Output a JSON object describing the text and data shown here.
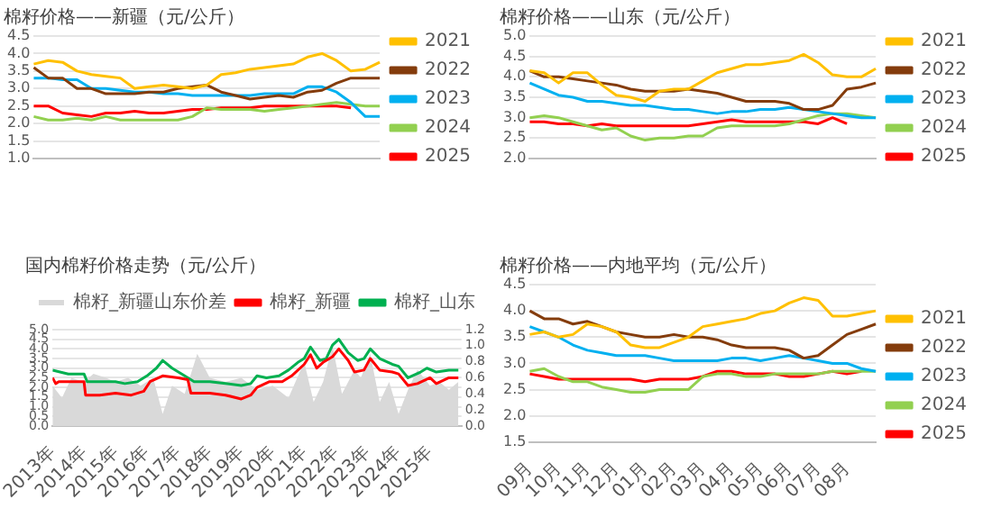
{
  "chart_data": [
    {
      "type": "line",
      "title": "棉籽价格——新疆（元/公斤）",
      "categories": [
        null,
        null,
        null,
        null,
        null,
        null,
        null,
        null,
        null,
        null,
        null,
        null,
        null,
        null,
        null,
        null,
        null,
        null,
        null,
        null,
        null,
        null,
        null,
        null,
        null
      ],
      "ylim": [
        1,
        4.5
      ],
      "yticks": [
        {
          "value": 1,
          "label": "1.0"
        },
        {
          "value": 1.5,
          "label": "1.5"
        },
        {
          "value": 2,
          "label": "2.0"
        },
        {
          "value": 2.5,
          "label": "2.5"
        },
        {
          "value": 3,
          "label": "3.0"
        },
        {
          "value": 3.5,
          "label": "3.5"
        },
        {
          "value": 4,
          "label": "4.0"
        },
        {
          "value": 4.5,
          "label": "4.5"
        }
      ],
      "grid": "y",
      "legend": "right",
      "series": [
        {
          "name": "2021",
          "color": "#ffc000",
          "values": [
            3.7,
            3.8,
            3.75,
            3.5,
            3.4,
            3.35,
            3.3,
            3.0,
            3.05,
            3.1,
            3.05,
            3.0,
            3.1,
            3.4,
            3.45,
            3.55,
            3.6,
            3.65,
            3.7,
            3.9,
            4.0,
            3.8,
            3.5,
            3.55,
            3.75
          ]
        },
        {
          "name": "2022",
          "color": "#843c0c",
          "values": [
            3.6,
            3.3,
            3.3,
            3.0,
            3.0,
            2.85,
            2.85,
            2.85,
            2.9,
            2.9,
            3.0,
            3.05,
            3.1,
            2.9,
            2.8,
            2.7,
            2.75,
            2.8,
            2.75,
            2.9,
            2.95,
            3.15,
            3.3,
            3.3,
            3.3
          ]
        },
        {
          "name": "2023",
          "color": "#00b0f0",
          "values": [
            3.3,
            3.3,
            3.25,
            3.25,
            3.0,
            3.0,
            2.95,
            2.9,
            2.9,
            2.85,
            2.85,
            2.8,
            2.8,
            2.8,
            2.8,
            2.8,
            2.85,
            2.85,
            2.85,
            3.05,
            3.05,
            2.9,
            2.6,
            2.2,
            2.2
          ]
        },
        {
          "name": "2024",
          "color": "#92d050",
          "values": [
            2.2,
            2.1,
            2.1,
            2.15,
            2.1,
            2.2,
            2.1,
            2.1,
            2.1,
            2.1,
            2.1,
            2.2,
            2.45,
            2.4,
            2.4,
            2.4,
            2.35,
            2.4,
            2.45,
            2.5,
            2.55,
            2.6,
            2.55,
            2.5,
            2.5
          ]
        },
        {
          "name": "2025",
          "color": "#ff0000",
          "values": [
            2.5,
            2.5,
            2.3,
            2.25,
            2.2,
            2.3,
            2.3,
            2.35,
            2.3,
            2.3,
            2.35,
            2.4,
            2.4,
            2.45,
            2.45,
            2.45,
            2.5,
            2.5,
            2.5,
            2.5,
            2.5,
            2.5,
            2.45,
            null,
            null
          ]
        }
      ]
    },
    {
      "type": "line",
      "title": "棉籽价格——山东（元/公斤）",
      "categories": [
        null,
        null,
        null,
        null,
        null,
        null,
        null,
        null,
        null,
        null,
        null,
        null,
        null,
        null,
        null,
        null,
        null,
        null,
        null,
        null,
        null,
        null,
        null,
        null,
        null
      ],
      "ylim": [
        2,
        5
      ],
      "yticks": [
        {
          "value": 2,
          "label": "2.0"
        },
        {
          "value": 2.5,
          "label": "2.5"
        },
        {
          "value": 3,
          "label": "3.0"
        },
        {
          "value": 3.5,
          "label": "3.5"
        },
        {
          "value": 4,
          "label": "4.0"
        },
        {
          "value": 4.5,
          "label": "4.5"
        },
        {
          "value": 5,
          "label": "5.0"
        }
      ],
      "grid": "y",
      "legend": "right",
      "series": [
        {
          "name": "2021",
          "color": "#ffc000",
          "values": [
            4.15,
            4.1,
            3.85,
            4.1,
            4.1,
            3.8,
            3.55,
            3.5,
            3.4,
            3.65,
            3.7,
            3.7,
            3.9,
            4.1,
            4.2,
            4.3,
            4.3,
            4.35,
            4.4,
            4.55,
            4.35,
            4.05,
            4.0,
            4.0,
            4.2
          ]
        },
        {
          "name": "2022",
          "color": "#843c0c",
          "values": [
            4.15,
            4.0,
            4.0,
            3.95,
            3.9,
            3.85,
            3.8,
            3.7,
            3.65,
            3.65,
            3.65,
            3.7,
            3.65,
            3.6,
            3.5,
            3.4,
            3.4,
            3.4,
            3.35,
            3.2,
            3.2,
            3.3,
            3.7,
            3.75,
            3.85
          ]
        },
        {
          "name": "2023",
          "color": "#00b0f0",
          "values": [
            3.85,
            3.7,
            3.55,
            3.5,
            3.4,
            3.4,
            3.35,
            3.3,
            3.3,
            3.25,
            3.2,
            3.2,
            3.15,
            3.1,
            3.15,
            3.15,
            3.2,
            3.2,
            3.25,
            3.2,
            3.15,
            3.1,
            3.05,
            3.0,
            3.0
          ]
        },
        {
          "name": "2024",
          "color": "#92d050",
          "values": [
            3.0,
            3.05,
            3.0,
            2.9,
            2.8,
            2.7,
            2.75,
            2.55,
            2.45,
            2.5,
            2.5,
            2.55,
            2.55,
            2.75,
            2.8,
            2.8,
            2.8,
            2.8,
            2.85,
            2.95,
            3.05,
            3.1,
            3.1,
            3.05,
            3.0
          ]
        },
        {
          "name": "2025",
          "color": "#ff0000",
          "values": [
            2.9,
            2.9,
            2.85,
            2.85,
            2.8,
            2.85,
            2.8,
            2.8,
            2.8,
            2.8,
            2.8,
            2.8,
            2.85,
            2.9,
            2.95,
            2.9,
            2.9,
            2.9,
            2.9,
            2.9,
            2.85,
            3.0,
            2.85,
            null,
            null
          ]
        }
      ]
    },
    {
      "type": "line",
      "title": "国内棉籽价格走势（元/公斤）",
      "xlim": [
        2013,
        2026
      ],
      "xticks": [
        {
          "value": 2013,
          "label": "2013年"
        },
        {
          "value": 2014,
          "label": "2014年"
        },
        {
          "value": 2015,
          "label": "2015年"
        },
        {
          "value": 2016,
          "label": "2016年"
        },
        {
          "value": 2017,
          "label": "2017年"
        },
        {
          "value": 2018,
          "label": "2018年"
        },
        {
          "value": 2019,
          "label": "2019年"
        },
        {
          "value": 2020,
          "label": "2020年"
        },
        {
          "value": 2021,
          "label": "2021年"
        },
        {
          "value": 2022,
          "label": "2022年"
        },
        {
          "value": 2023,
          "label": "2023年"
        },
        {
          "value": 2024,
          "label": "2024年"
        },
        {
          "value": 2025,
          "label": "2025年"
        }
      ],
      "ylim": [
        0,
        5
      ],
      "yticks": [
        {
          "value": 0,
          "label": "0.0"
        },
        {
          "value": 0.5,
          "label": "0.5"
        },
        {
          "value": 1,
          "label": "1.0"
        },
        {
          "value": 1.5,
          "label": "1.5"
        },
        {
          "value": 2,
          "label": "2.0"
        },
        {
          "value": 2.5,
          "label": "2.5"
        },
        {
          "value": 3,
          "label": "3.0"
        },
        {
          "value": 3.5,
          "label": "3.5"
        },
        {
          "value": 4,
          "label": "4.0"
        },
        {
          "value": 4.5,
          "label": "4.5"
        },
        {
          "value": 5,
          "label": "5.0"
        }
      ],
      "y2lim": [
        0,
        1.2
      ],
      "y2ticks": [
        {
          "value": 0,
          "label": "0.0"
        },
        {
          "value": 0.2,
          "label": "0.2"
        },
        {
          "value": 0.4,
          "label": "0.4"
        },
        {
          "value": 0.6,
          "label": "0.6"
        },
        {
          "value": 0.8,
          "label": "0.8"
        },
        {
          "value": 1,
          "label": "1.0"
        },
        {
          "value": 1.2,
          "label": "1.2"
        }
      ],
      "grid": "y",
      "legend": "top",
      "series": [
        {
          "name": "棉籽_新疆山东价差",
          "type": "area",
          "axis": "y2",
          "color": "#d9d9d9",
          "x": [
            2013,
            2013.3,
            2013.6,
            2014,
            2014.3,
            2014.7,
            2015,
            2015.4,
            2015.8,
            2016.2,
            2016.5,
            2016.8,
            2017.2,
            2017.6,
            2018,
            2018.5,
            2019,
            2019.5,
            2020,
            2020.5,
            2021,
            2021.3,
            2021.6,
            2021.9,
            2022.2,
            2022.6,
            2022.8,
            2023.1,
            2023.4,
            2023.7,
            2024,
            2024.3,
            2024.6,
            2025,
            2025.3,
            2025.6,
            2025.9
          ],
          "values": [
            0.5,
            0.35,
            0.6,
            0.55,
            0.65,
            0.6,
            0.55,
            0.6,
            0.5,
            0.6,
            0.15,
            0.5,
            0.4,
            0.9,
            0.6,
            0.55,
            0.6,
            0.45,
            0.5,
            0.35,
            0.8,
            0.3,
            0.55,
            1.0,
            0.4,
            0.7,
            0.6,
            0.9,
            0.3,
            0.55,
            0.15,
            0.45,
            0.7,
            0.5,
            0.55,
            0.45,
            0.55
          ]
        },
        {
          "name": "棉籽_新疆",
          "color": "#ff0000",
          "x": [
            2013,
            2013.1,
            2013.2,
            2014,
            2014.05,
            2014.5,
            2015,
            2015.5,
            2015.9,
            2016.1,
            2016.5,
            2017,
            2017.3,
            2017.4,
            2018,
            2018.5,
            2019,
            2019.3,
            2019.5,
            2019.9,
            2020.3,
            2020.6,
            2021,
            2021.2,
            2021.4,
            2021.6,
            2021.9,
            2022.1,
            2022.4,
            2022.6,
            2022.9,
            2023.1,
            2023.4,
            2023.8,
            2024,
            2024.3,
            2024.6,
            2025,
            2025.2,
            2025.6,
            2025.9
          ],
          "values": [
            2.5,
            2.2,
            2.3,
            2.3,
            1.6,
            1.6,
            1.7,
            1.6,
            1.8,
            2.3,
            2.6,
            2.5,
            2.4,
            1.7,
            1.7,
            1.6,
            1.4,
            1.6,
            2.0,
            2.3,
            2.3,
            2.6,
            3.2,
            3.7,
            3.0,
            3.3,
            3.6,
            4.0,
            3.4,
            2.8,
            2.9,
            3.5,
            2.9,
            2.8,
            2.7,
            2.1,
            2.2,
            2.5,
            2.2,
            2.5,
            2.5
          ]
        },
        {
          "name": "棉籽_山东",
          "color": "#00b050",
          "x": [
            2013,
            2013.5,
            2014,
            2014.1,
            2014.5,
            2015,
            2015.3,
            2015.7,
            2016,
            2016.3,
            2016.5,
            2016.8,
            2017.2,
            2017.5,
            2018,
            2018.5,
            2019,
            2019.3,
            2019.5,
            2019.8,
            2020.2,
            2020.5,
            2020.8,
            2021,
            2021.2,
            2021.5,
            2021.7,
            2021.9,
            2022.1,
            2022.4,
            2022.7,
            2022.9,
            2023.1,
            2023.4,
            2023.8,
            2024,
            2024.3,
            2024.7,
            2024.9,
            2025.2,
            2025.6,
            2025.9
          ],
          "values": [
            2.9,
            2.7,
            2.7,
            2.3,
            2.3,
            2.3,
            2.2,
            2.3,
            2.6,
            3.0,
            3.4,
            3.0,
            2.6,
            2.3,
            2.3,
            2.2,
            2.1,
            2.2,
            2.6,
            2.5,
            2.6,
            2.9,
            3.3,
            3.5,
            4.1,
            3.4,
            3.5,
            4.2,
            4.5,
            3.8,
            3.4,
            3.5,
            4.0,
            3.5,
            3.2,
            3.1,
            2.5,
            2.8,
            3.0,
            2.8,
            2.9,
            2.9
          ]
        }
      ]
    },
    {
      "type": "line",
      "title": "棉籽价格——内地平均（元/公斤）",
      "categories": [
        "09月",
        null,
        "10月",
        null,
        "11月",
        null,
        "12月",
        null,
        "01月",
        null,
        "02月",
        null,
        "03月",
        null,
        "04月",
        null,
        "05月",
        null,
        "06月",
        null,
        "07月",
        null,
        "08月",
        null,
        null
      ],
      "ylim": [
        1.5,
        4.5
      ],
      "yticks": [
        {
          "value": 1.5,
          "label": "1.5"
        },
        {
          "value": 2,
          "label": "2.0"
        },
        {
          "value": 2.5,
          "label": "2.5"
        },
        {
          "value": 3,
          "label": "3.0"
        },
        {
          "value": 3.5,
          "label": "3.5"
        },
        {
          "value": 4,
          "label": "4.0"
        },
        {
          "value": 4.5,
          "label": "4.5"
        }
      ],
      "grid": "y",
      "legend": "right",
      "series": [
        {
          "name": "2021",
          "color": "#ffc000",
          "values": [
            3.55,
            3.6,
            3.5,
            3.55,
            3.75,
            3.7,
            3.6,
            3.35,
            3.3,
            3.3,
            3.4,
            3.5,
            3.7,
            3.75,
            3.8,
            3.85,
            3.95,
            4.0,
            4.15,
            4.25,
            4.2,
            3.9,
            3.9,
            3.95,
            4.0
          ]
        },
        {
          "name": "2022",
          "color": "#843c0c",
          "values": [
            4.0,
            3.85,
            3.85,
            3.75,
            3.8,
            3.7,
            3.6,
            3.55,
            3.5,
            3.5,
            3.55,
            3.5,
            3.5,
            3.45,
            3.35,
            3.3,
            3.3,
            3.3,
            3.25,
            3.1,
            3.15,
            3.35,
            3.55,
            3.65,
            3.75
          ]
        },
        {
          "name": "2023",
          "color": "#00b0f0",
          "values": [
            3.7,
            3.6,
            3.5,
            3.35,
            3.25,
            3.2,
            3.15,
            3.15,
            3.15,
            3.1,
            3.05,
            3.05,
            3.05,
            3.05,
            3.1,
            3.1,
            3.05,
            3.1,
            3.15,
            3.1,
            3.05,
            3.0,
            3.0,
            2.9,
            2.85
          ]
        },
        {
          "name": "2024",
          "color": "#92d050",
          "values": [
            2.85,
            2.9,
            2.75,
            2.65,
            2.65,
            2.55,
            2.5,
            2.45,
            2.45,
            2.5,
            2.5,
            2.5,
            2.75,
            2.8,
            2.8,
            2.75,
            2.75,
            2.8,
            2.8,
            2.8,
            2.8,
            2.85,
            2.85,
            2.85,
            2.85
          ]
        },
        {
          "name": "2025",
          "color": "#ff0000",
          "values": [
            2.8,
            2.75,
            2.7,
            2.7,
            2.7,
            2.7,
            2.7,
            2.7,
            2.65,
            2.7,
            2.7,
            2.7,
            2.75,
            2.85,
            2.85,
            2.8,
            2.8,
            2.8,
            2.75,
            2.75,
            2.8,
            2.85,
            2.8,
            2.85,
            null
          ]
        }
      ]
    }
  ]
}
